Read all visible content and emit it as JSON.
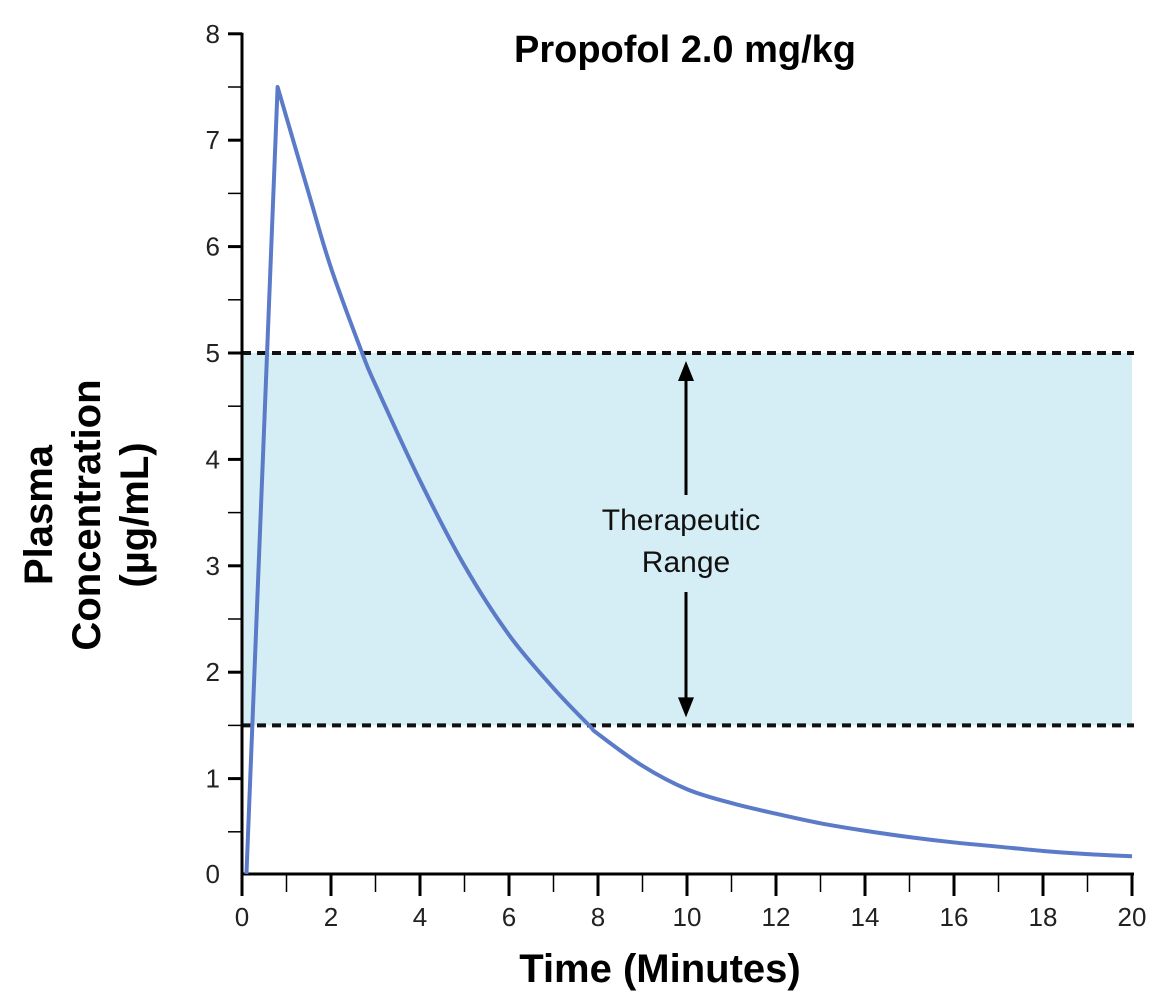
{
  "chart_data": {
    "type": "line",
    "title": "Propofol 2.0 mg/kg",
    "xlabel": "Time (Minutes)",
    "ylabel": [
      "Plasma",
      "Concentration",
      "(µg/mL)"
    ],
    "xlim": [
      0,
      20
    ],
    "ylim": [
      0,
      8
    ],
    "x_ticks": [
      0,
      2,
      4,
      6,
      8,
      10,
      12,
      14,
      16,
      18,
      20
    ],
    "y_ticks": [
      0,
      1,
      2,
      3,
      4,
      5,
      6,
      7,
      8
    ],
    "grid": false,
    "series": [
      {
        "color": "#5b7bc9",
        "points": [
          [
            0.1,
            0
          ],
          [
            0.8,
            7.5
          ],
          [
            1.5,
            6.5
          ],
          [
            2,
            5.8
          ],
          [
            2.7,
            5.0
          ],
          [
            3,
            4.7
          ],
          [
            4,
            3.8
          ],
          [
            5,
            3.0
          ],
          [
            6,
            2.35
          ],
          [
            7,
            1.85
          ],
          [
            7.8,
            1.5
          ],
          [
            8,
            1.42
          ],
          [
            9,
            1.12
          ],
          [
            10,
            0.9
          ],
          [
            11,
            0.77
          ],
          [
            12,
            0.67
          ],
          [
            13,
            0.58
          ],
          [
            14,
            0.51
          ],
          [
            15,
            0.45
          ],
          [
            16,
            0.4
          ],
          [
            17,
            0.36
          ],
          [
            18,
            0.32
          ],
          [
            19,
            0.29
          ],
          [
            20,
            0.27
          ]
        ]
      }
    ],
    "band": {
      "label": [
        "Therapeutic",
        "Range"
      ],
      "from": 1.5,
      "to": 5,
      "fill": "#d5eef5",
      "line_style": "dashed"
    }
  }
}
